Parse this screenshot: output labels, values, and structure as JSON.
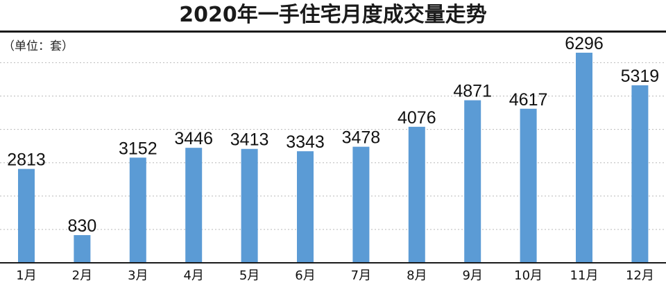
{
  "chart_data": {
    "type": "bar",
    "title": "2020年一手住宅月度成交量走势",
    "unit": "（单位：套）",
    "categories": [
      "1月",
      "2月",
      "3月",
      "4月",
      "5月",
      "6月",
      "7月",
      "8月",
      "9月",
      "10月",
      "11月",
      "12月"
    ],
    "values": [
      2813,
      830,
      3152,
      3446,
      3413,
      3343,
      3478,
      4076,
      4871,
      4617,
      6296,
      5319
    ],
    "ylim": [
      0,
      6700
    ],
    "grid": true,
    "bar_color": "#5b9bd5"
  }
}
